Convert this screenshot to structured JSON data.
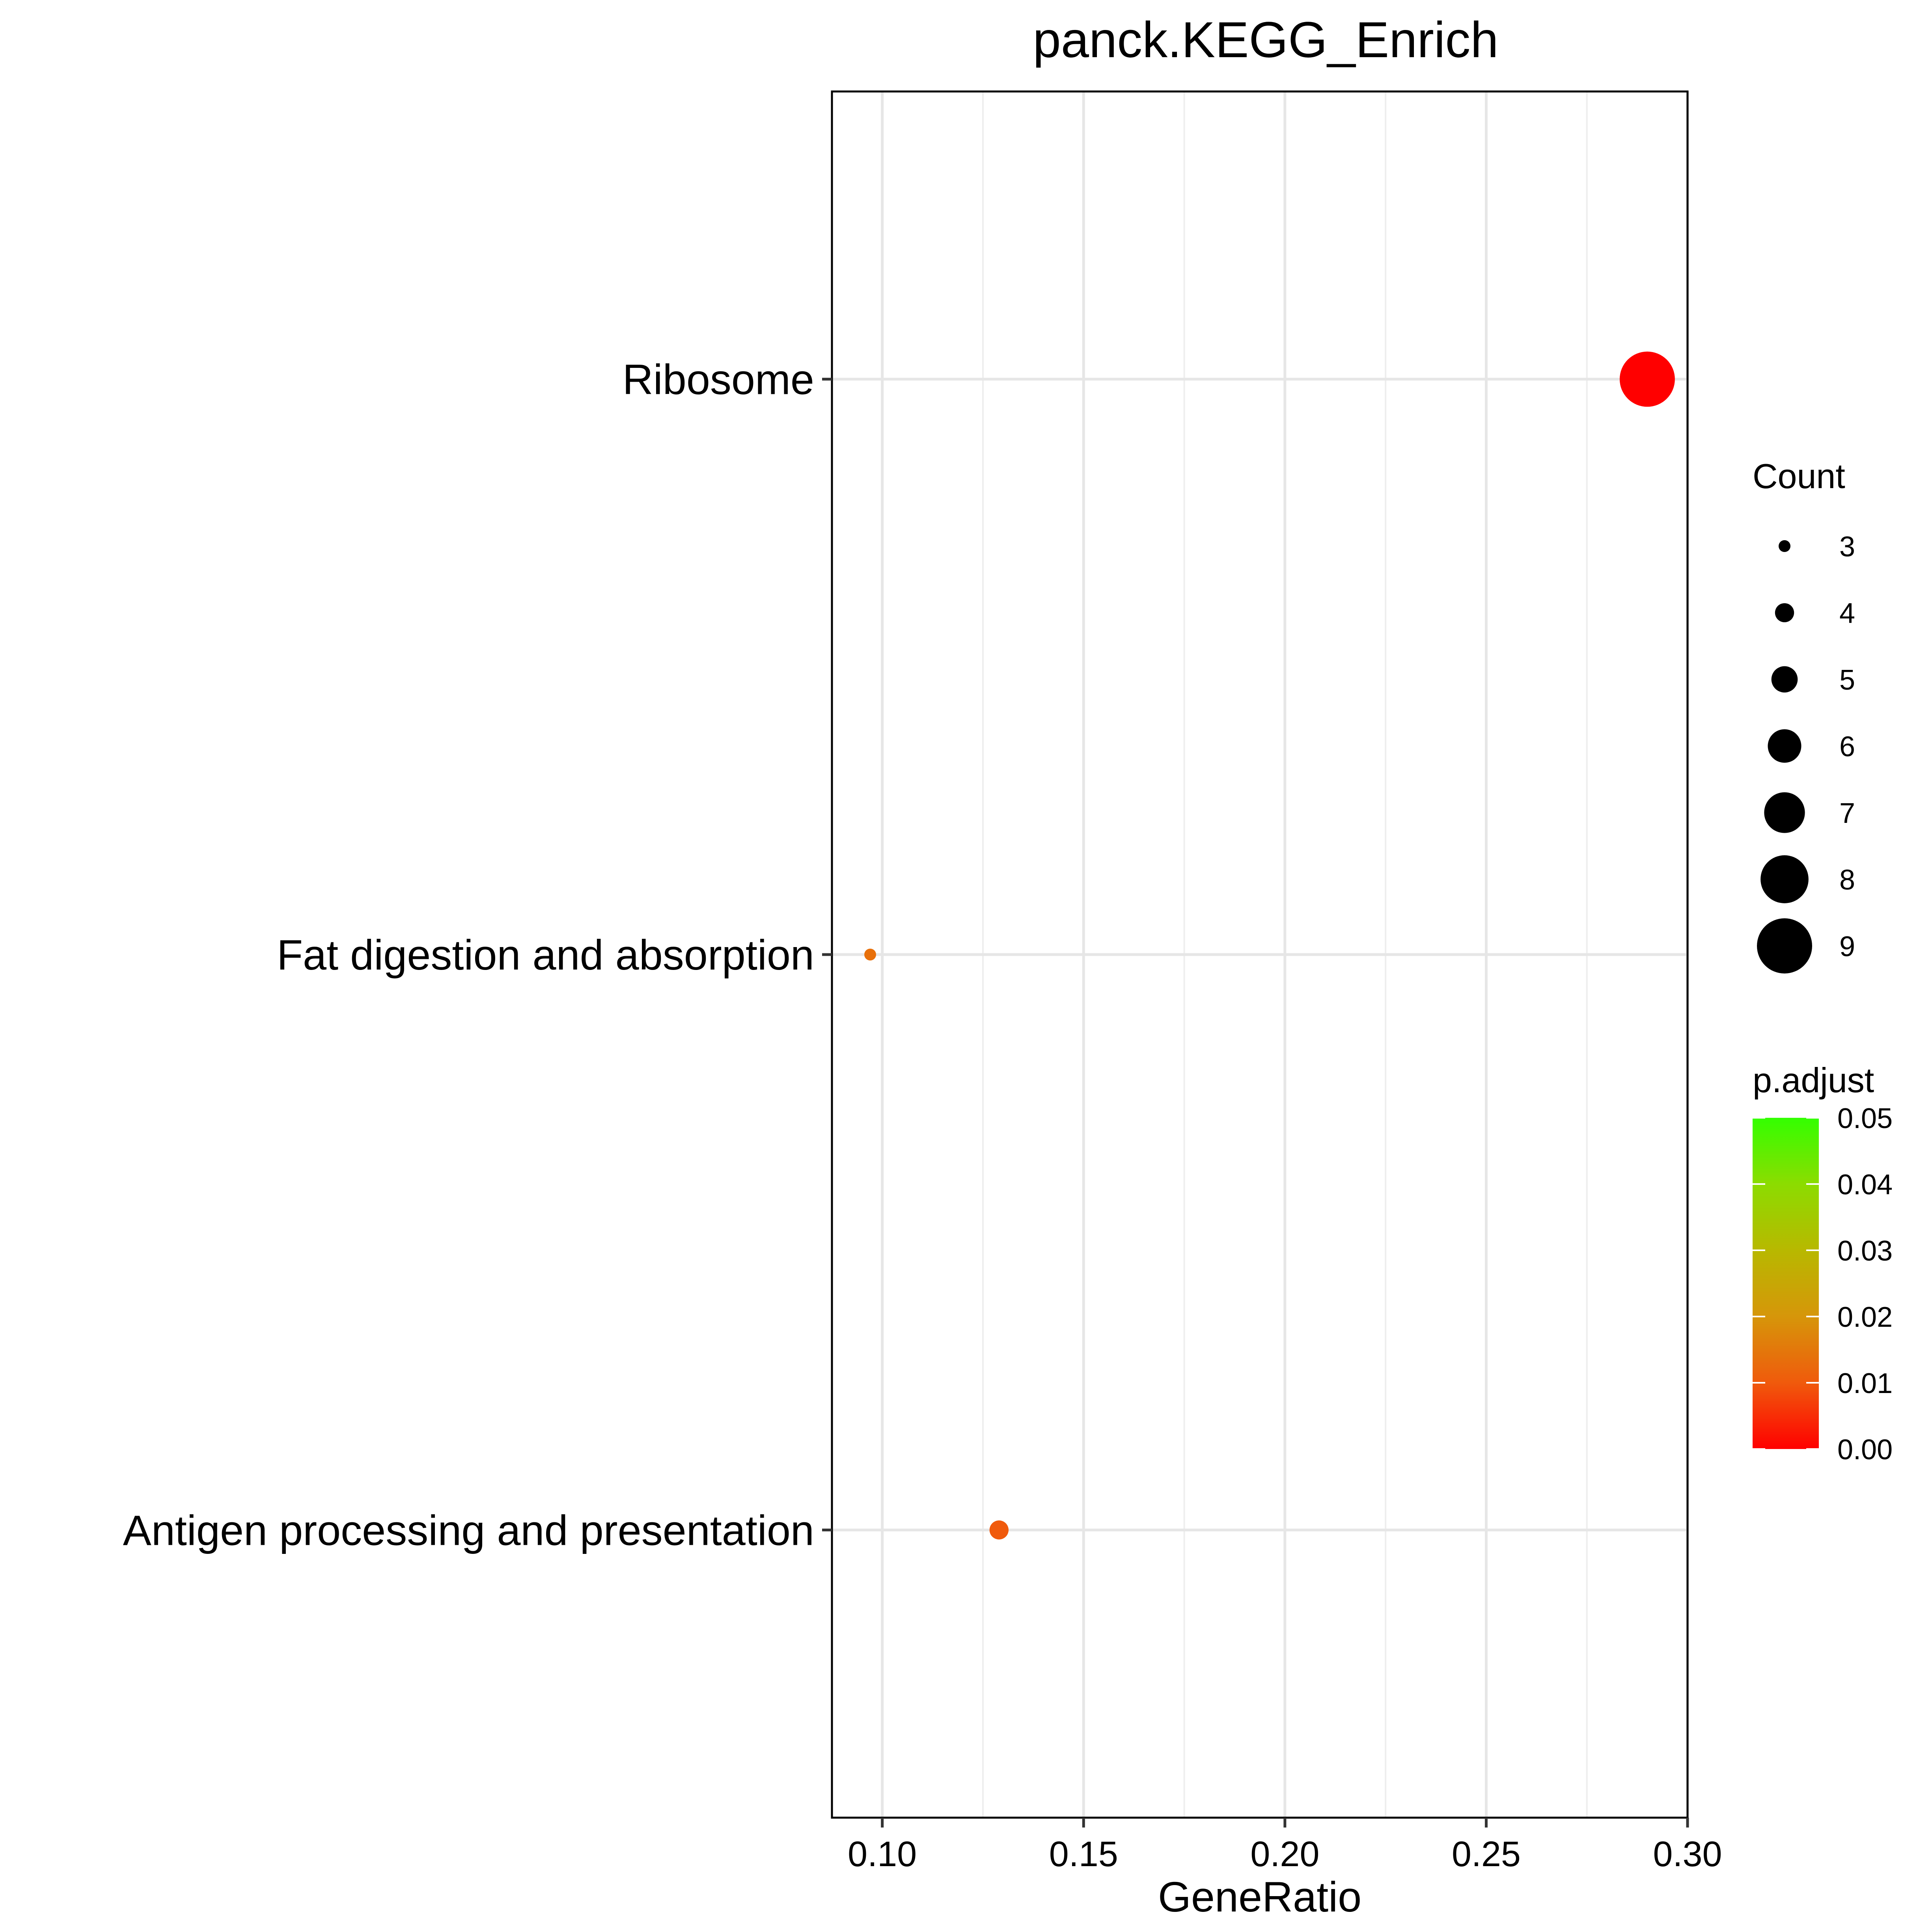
{
  "chart_data": {
    "type": "scatter",
    "title": "panck.KEGG_Enrich",
    "xlabel": "GeneRatio",
    "ylabel": "",
    "xlim": [
      0.0875,
      0.3
    ],
    "x_ticks": [
      "0.10",
      "0.15",
      "0.20",
      "0.25",
      "0.30"
    ],
    "x_tick_values": [
      0.1,
      0.15,
      0.2,
      0.25,
      0.3
    ],
    "categories": [
      "Ribosome",
      "Fat digestion and absorption",
      "Antigen processing and presentation"
    ],
    "points": [
      {
        "category": "Ribosome",
        "x": 0.29,
        "count": 9,
        "p_adjust": 0.0002,
        "color": "#ff0000"
      },
      {
        "category": "Fat digestion and absorption",
        "x": 0.097,
        "count": 3,
        "p_adjust": 0.011,
        "color": "#e8700a"
      },
      {
        "category": "Antigen processing and presentation",
        "x": 0.129,
        "count": 4,
        "p_adjust": 0.008,
        "color": "#f05a0c"
      }
    ],
    "grid": true,
    "size_legend": {
      "title": "Count",
      "values": [
        3,
        4,
        5,
        6,
        7,
        8,
        9
      ],
      "labels": [
        "3",
        "4",
        "5",
        "6",
        "7",
        "8",
        "9"
      ]
    },
    "color_legend": {
      "title": "p.adjust",
      "labels": [
        "0.05",
        "0.04",
        "0.03",
        "0.02",
        "0.01",
        "0.00"
      ],
      "values": [
        0.05,
        0.04,
        0.03,
        0.02,
        0.01,
        0.0
      ],
      "low_color": "#ff0000",
      "high_color": "#33ff00"
    }
  }
}
